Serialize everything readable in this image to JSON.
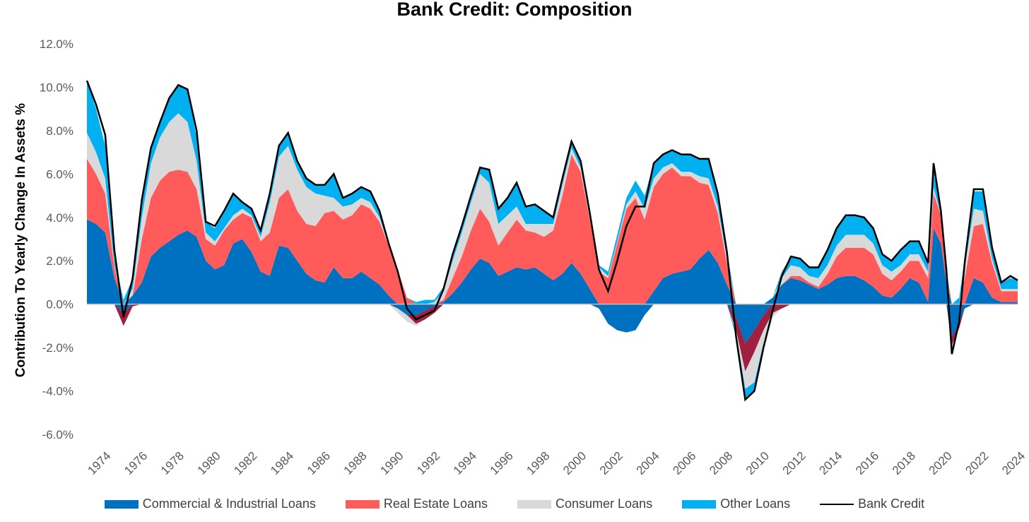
{
  "chart_data": {
    "type": "area",
    "title": "Bank Credit: Composition",
    "xlabel": "",
    "ylabel": "Contribution To Yearly Change In Assets %",
    "ylim": [
      -6,
      12
    ],
    "xlim": [
      1974,
      2024.9
    ],
    "yticks": [
      "12.0%",
      "10.0%",
      "8.0%",
      "6.0%",
      "4.0%",
      "2.0%",
      "0.0%",
      "-2.0%",
      "-4.0%",
      "-6.0%"
    ],
    "xticks": [
      "1974",
      "1976",
      "1978",
      "1980",
      "1982",
      "1984",
      "1986",
      "1988",
      "1990",
      "1992",
      "1994",
      "1996",
      "1998",
      "2000",
      "2002",
      "2004",
      "2006",
      "2008",
      "2010",
      "2012",
      "2014",
      "2016",
      "2018",
      "2020",
      "2022",
      "2024"
    ],
    "legend_position": "bottom",
    "grid": false,
    "colors": {
      "ci": "#0070C0",
      "re": "#FF5B5B",
      "re_negative": "#A0213F",
      "consumer": "#D9D9D9",
      "other": "#00B0F0",
      "bank_credit": "#000000"
    },
    "series": [
      {
        "key": "ci",
        "name": "Commercial & Industrial Loans"
      },
      {
        "key": "re",
        "name": "Real Estate Loans"
      },
      {
        "key": "consumer",
        "name": "Consumer Loans"
      },
      {
        "key": "other",
        "name": "Other Loans"
      },
      {
        "key": "bank_credit",
        "name": "Bank Credit"
      }
    ],
    "points": [
      {
        "x": 1974.0,
        "ci": 3.9,
        "re": 2.8,
        "consumer": 1.2,
        "other": 2.4,
        "total": 10.3
      },
      {
        "x": 1974.5,
        "ci": 3.7,
        "re": 2.3,
        "consumer": 1.0,
        "other": 2.0,
        "total": 9.2
      },
      {
        "x": 1975.0,
        "ci": 3.3,
        "re": 1.8,
        "consumer": 0.7,
        "other": 1.5,
        "total": 7.8
      },
      {
        "x": 1975.5,
        "ci": 1.2,
        "re": 0.5,
        "consumer": 0.1,
        "other": 0.3,
        "total": 2.5
      },
      {
        "x": 1976.0,
        "ci": -0.4,
        "re": -0.6,
        "consumer": 0.0,
        "other": 0.2,
        "total": -0.6
      },
      {
        "x": 1976.5,
        "ci": 0.4,
        "re": -0.1,
        "consumer": 0.3,
        "other": 0.5,
        "total": 1.2
      },
      {
        "x": 1977.0,
        "ci": 1.0,
        "re": 2.0,
        "consumer": 1.0,
        "other": 0.8,
        "total": 4.8
      },
      {
        "x": 1977.5,
        "ci": 2.2,
        "re": 2.7,
        "consumer": 1.6,
        "other": 0.7,
        "total": 7.2
      },
      {
        "x": 1978.0,
        "ci": 2.6,
        "re": 3.1,
        "consumer": 2.0,
        "other": 0.7,
        "total": 8.4
      },
      {
        "x": 1978.5,
        "ci": 2.9,
        "re": 3.2,
        "consumer": 2.3,
        "other": 1.1,
        "total": 9.5
      },
      {
        "x": 1979.0,
        "ci": 3.2,
        "re": 3.0,
        "consumer": 2.6,
        "other": 1.3,
        "total": 10.1
      },
      {
        "x": 1979.5,
        "ci": 3.4,
        "re": 2.7,
        "consumer": 2.3,
        "other": 1.5,
        "total": 9.9
      },
      {
        "x": 1980.0,
        "ci": 3.1,
        "re": 2.2,
        "consumer": 1.3,
        "other": 1.1,
        "total": 8.0
      },
      {
        "x": 1980.5,
        "ci": 2.0,
        "re": 1.0,
        "consumer": 0.3,
        "other": 0.5,
        "total": 3.8
      },
      {
        "x": 1981.0,
        "ci": 1.6,
        "re": 1.1,
        "consumer": 0.2,
        "other": 0.6,
        "total": 3.6
      },
      {
        "x": 1981.5,
        "ci": 1.8,
        "re": 1.6,
        "consumer": 0.1,
        "other": 0.8,
        "total": 4.3
      },
      {
        "x": 1982.0,
        "ci": 2.8,
        "re": 1.1,
        "consumer": 0.2,
        "other": 1.0,
        "total": 5.1
      },
      {
        "x": 1982.5,
        "ci": 3.0,
        "re": 1.2,
        "consumer": 0.2,
        "other": 0.3,
        "total": 4.7
      },
      {
        "x": 1983.0,
        "ci": 2.4,
        "re": 1.6,
        "consumer": 0.1,
        "other": 0.3,
        "total": 4.4
      },
      {
        "x": 1983.5,
        "ci": 1.5,
        "re": 1.4,
        "consumer": 0.2,
        "other": 0.3,
        "total": 3.4
      },
      {
        "x": 1984.0,
        "ci": 1.3,
        "re": 2.0,
        "consumer": 1.4,
        "other": 0.4,
        "total": 5.1
      },
      {
        "x": 1984.5,
        "ci": 2.7,
        "re": 2.2,
        "consumer": 1.9,
        "other": 0.5,
        "total": 7.3
      },
      {
        "x": 1985.0,
        "ci": 2.6,
        "re": 2.7,
        "consumer": 2.0,
        "other": 0.6,
        "total": 7.9
      },
      {
        "x": 1985.5,
        "ci": 2.0,
        "re": 2.3,
        "consumer": 1.9,
        "other": 0.4,
        "total": 6.6
      },
      {
        "x": 1986.0,
        "ci": 1.4,
        "re": 2.3,
        "consumer": 1.7,
        "other": 0.4,
        "total": 5.8
      },
      {
        "x": 1986.5,
        "ci": 1.1,
        "re": 2.5,
        "consumer": 1.5,
        "other": 0.4,
        "total": 5.5
      },
      {
        "x": 1987.0,
        "ci": 1.0,
        "re": 3.2,
        "consumer": 0.8,
        "other": 0.5,
        "total": 5.5
      },
      {
        "x": 1987.5,
        "ci": 1.7,
        "re": 2.6,
        "consumer": 0.6,
        "other": 1.1,
        "total": 6.0
      },
      {
        "x": 1988.0,
        "ci": 1.2,
        "re": 2.7,
        "consumer": 0.6,
        "other": 0.4,
        "total": 4.9
      },
      {
        "x": 1988.5,
        "ci": 1.2,
        "re": 2.9,
        "consumer": 0.5,
        "other": 0.5,
        "total": 5.1
      },
      {
        "x": 1989.0,
        "ci": 1.5,
        "re": 3.1,
        "consumer": 0.3,
        "other": 0.5,
        "total": 5.4
      },
      {
        "x": 1989.5,
        "ci": 1.2,
        "re": 3.2,
        "consumer": 0.3,
        "other": 0.5,
        "total": 5.2
      },
      {
        "x": 1990.0,
        "ci": 0.9,
        "re": 2.9,
        "consumer": 0.2,
        "other": 0.3,
        "total": 4.3
      },
      {
        "x": 1990.5,
        "ci": 0.4,
        "re": 2.3,
        "consumer": 0.0,
        "other": 0.1,
        "total": 2.8
      },
      {
        "x": 1991.0,
        "ci": -0.2,
        "re": 1.6,
        "consumer": -0.2,
        "other": 0.0,
        "total": 1.5
      },
      {
        "x": 1991.5,
        "ci": -0.5,
        "re": 0.3,
        "consumer": -0.3,
        "other": 0.0,
        "total": -0.2
      },
      {
        "x": 1992.0,
        "ci": -0.5,
        "re": -0.4,
        "consumer": -0.1,
        "other": 0.1,
        "total": -0.7
      },
      {
        "x": 1992.5,
        "ci": -0.3,
        "re": -0.4,
        "consumer": 0.0,
        "other": 0.2,
        "total": -0.5
      },
      {
        "x": 1993.0,
        "ci": -0.1,
        "re": -0.3,
        "consumer": 0.1,
        "other": 0.1,
        "total": -0.3
      },
      {
        "x": 1993.5,
        "ci": 0.1,
        "re": 0.1,
        "consumer": 0.4,
        "other": 0.2,
        "total": 0.7
      },
      {
        "x": 1994.0,
        "ci": 0.5,
        "re": 0.7,
        "consumer": 0.8,
        "other": 0.3,
        "total": 2.3
      },
      {
        "x": 1994.5,
        "ci": 1.0,
        "re": 1.2,
        "consumer": 1.1,
        "other": 0.3,
        "total": 3.6
      },
      {
        "x": 1995.0,
        "ci": 1.6,
        "re": 1.8,
        "consumer": 1.3,
        "other": 0.3,
        "total": 5.0
      },
      {
        "x": 1995.5,
        "ci": 2.1,
        "re": 2.3,
        "consumer": 1.6,
        "other": 0.3,
        "total": 6.3
      },
      {
        "x": 1996.0,
        "ci": 1.9,
        "re": 1.9,
        "consumer": 1.8,
        "other": 0.6,
        "total": 6.2
      },
      {
        "x": 1996.5,
        "ci": 1.3,
        "re": 1.4,
        "consumer": 1.0,
        "other": 0.7,
        "total": 4.4
      },
      {
        "x": 1997.0,
        "ci": 1.5,
        "re": 1.8,
        "consumer": 0.8,
        "other": 0.8,
        "total": 4.9
      },
      {
        "x": 1997.5,
        "ci": 1.7,
        "re": 2.2,
        "consumer": 0.6,
        "other": 1.1,
        "total": 5.6
      },
      {
        "x": 1998.0,
        "ci": 1.6,
        "re": 1.8,
        "consumer": 0.3,
        "other": 0.8,
        "total": 4.5
      },
      {
        "x": 1998.5,
        "ci": 1.7,
        "re": 1.6,
        "consumer": 0.4,
        "other": 0.9,
        "total": 4.6
      },
      {
        "x": 1999.0,
        "ci": 1.4,
        "re": 1.7,
        "consumer": 0.6,
        "other": 0.6,
        "total": 4.3
      },
      {
        "x": 1999.5,
        "ci": 1.1,
        "re": 2.3,
        "consumer": 0.3,
        "other": 0.3,
        "total": 4.0
      },
      {
        "x": 2000.0,
        "ci": 1.4,
        "re": 3.6,
        "consumer": 0.5,
        "other": 0.3,
        "total": 5.8
      },
      {
        "x": 2000.5,
        "ci": 1.9,
        "re": 5.0,
        "consumer": 0.3,
        "other": 0.3,
        "total": 7.5
      },
      {
        "x": 2001.0,
        "ci": 1.4,
        "re": 4.7,
        "consumer": 0.2,
        "other": 0.3,
        "total": 6.6
      },
      {
        "x": 2001.5,
        "ci": 0.7,
        "re": 3.2,
        "consumer": 0.1,
        "other": 0.2,
        "total": 4.2
      },
      {
        "x": 2002.0,
        "ci": -0.2,
        "re": 1.5,
        "consumer": 0.2,
        "other": 0.1,
        "total": 1.6
      },
      {
        "x": 2002.5,
        "ci": -0.9,
        "re": 1.2,
        "consumer": 0.1,
        "other": 0.2,
        "total": 0.6
      },
      {
        "x": 2003.0,
        "ci": -1.2,
        "re": 2.8,
        "consumer": 0.1,
        "other": 0.3,
        "total": 2.0
      },
      {
        "x": 2003.5,
        "ci": -1.3,
        "re": 4.4,
        "consumer": 0.2,
        "other": 0.3,
        "total": 3.6
      },
      {
        "x": 2004.0,
        "ci": -1.2,
        "re": 4.9,
        "consumer": 0.3,
        "other": 0.5,
        "total": 4.5
      },
      {
        "x": 2004.5,
        "ci": -0.5,
        "re": 3.9,
        "consumer": 0.5,
        "other": 0.6,
        "total": 4.5
      },
      {
        "x": 2005.0,
        "ci": 0.6,
        "re": 4.8,
        "consumer": 0.4,
        "other": 0.7,
        "total": 6.5
      },
      {
        "x": 2005.5,
        "ci": 1.2,
        "re": 4.8,
        "consumer": 0.3,
        "other": 0.6,
        "total": 6.9
      },
      {
        "x": 2006.0,
        "ci": 1.4,
        "re": 4.9,
        "consumer": 0.2,
        "other": 0.6,
        "total": 7.1
      },
      {
        "x": 2006.5,
        "ci": 1.5,
        "re": 4.4,
        "consumer": 0.2,
        "other": 0.8,
        "total": 6.9
      },
      {
        "x": 2007.0,
        "ci": 1.6,
        "re": 4.3,
        "consumer": 0.2,
        "other": 0.8,
        "total": 6.9
      },
      {
        "x": 2007.5,
        "ci": 2.1,
        "re": 3.5,
        "consumer": 0.3,
        "other": 0.8,
        "total": 6.7
      },
      {
        "x": 2008.0,
        "ci": 2.5,
        "re": 3.0,
        "consumer": 0.3,
        "other": 0.9,
        "total": 6.7
      },
      {
        "x": 2008.5,
        "ci": 1.9,
        "re": 2.3,
        "consumer": 0.3,
        "other": 0.6,
        "total": 5.1
      },
      {
        "x": 2009.0,
        "ci": 0.9,
        "re": 1.0,
        "consumer": 0.2,
        "other": 0.3,
        "total": 2.4
      },
      {
        "x": 2009.5,
        "ci": -0.6,
        "re": -0.6,
        "consumer": -0.1,
        "other": -0.2,
        "total": -1.5
      },
      {
        "x": 2010.0,
        "ci": -1.8,
        "re": -1.3,
        "consumer": -0.8,
        "other": -0.5,
        "total": -4.4
      },
      {
        "x": 2010.5,
        "ci": -1.2,
        "re": -1.0,
        "consumer": -1.4,
        "other": -0.4,
        "total": -4.0
      },
      {
        "x": 2011.0,
        "ci": -0.5,
        "re": -0.7,
        "consumer": -0.6,
        "other": -0.2,
        "total": -2.0
      },
      {
        "x": 2011.5,
        "ci": 0.3,
        "re": -0.4,
        "consumer": -0.2,
        "other": 0.0,
        "total": -0.3
      },
      {
        "x": 2012.0,
        "ci": 0.9,
        "re": -0.2,
        "consumer": 0.3,
        "other": 0.3,
        "total": 1.3
      },
      {
        "x": 2012.5,
        "ci": 1.2,
        "re": 0.1,
        "consumer": 0.5,
        "other": 0.4,
        "total": 2.2
      },
      {
        "x": 2013.0,
        "ci": 1.1,
        "re": 0.2,
        "consumer": 0.4,
        "other": 0.4,
        "total": 2.1
      },
      {
        "x": 2013.5,
        "ci": 0.9,
        "re": 0.1,
        "consumer": 0.3,
        "other": 0.4,
        "total": 1.7
      },
      {
        "x": 2014.0,
        "ci": 0.7,
        "re": 0.1,
        "consumer": 0.4,
        "other": 0.5,
        "total": 1.7
      },
      {
        "x": 2014.5,
        "ci": 0.9,
        "re": 0.5,
        "consumer": 0.4,
        "other": 0.7,
        "total": 2.5
      },
      {
        "x": 2015.0,
        "ci": 1.2,
        "re": 1.0,
        "consumer": 0.5,
        "other": 0.8,
        "total": 3.5
      },
      {
        "x": 2015.5,
        "ci": 1.3,
        "re": 1.3,
        "consumer": 0.6,
        "other": 0.9,
        "total": 4.1
      },
      {
        "x": 2016.0,
        "ci": 1.3,
        "re": 1.3,
        "consumer": 0.6,
        "other": 0.9,
        "total": 4.1
      },
      {
        "x": 2016.5,
        "ci": 1.1,
        "re": 1.5,
        "consumer": 0.6,
        "other": 0.8,
        "total": 4.0
      },
      {
        "x": 2017.0,
        "ci": 0.8,
        "re": 1.5,
        "consumer": 0.5,
        "other": 0.7,
        "total": 3.5
      },
      {
        "x": 2017.5,
        "ci": 0.4,
        "re": 1.0,
        "consumer": 0.4,
        "other": 0.5,
        "total": 2.3
      },
      {
        "x": 2018.0,
        "ci": 0.3,
        "re": 0.8,
        "consumer": 0.4,
        "other": 0.5,
        "total": 2.0
      },
      {
        "x": 2018.5,
        "ci": 0.7,
        "re": 0.8,
        "consumer": 0.3,
        "other": 0.7,
        "total": 2.5
      },
      {
        "x": 2019.0,
        "ci": 1.2,
        "re": 0.8,
        "consumer": 0.3,
        "other": 0.6,
        "total": 2.9
      },
      {
        "x": 2019.5,
        "ci": 1.0,
        "re": 1.0,
        "consumer": 0.3,
        "other": 0.6,
        "total": 2.9
      },
      {
        "x": 2020.0,
        "ci": 0.1,
        "re": 1.1,
        "consumer": 0.3,
        "other": 0.4,
        "total": 1.9
      },
      {
        "x": 2020.3,
        "ci": 3.5,
        "re": 1.6,
        "consumer": 0.3,
        "other": 1.0,
        "total": 6.5
      },
      {
        "x": 2020.7,
        "ci": 2.8,
        "re": 1.3,
        "consumer": 0.0,
        "other": 0.2,
        "total": 4.3
      },
      {
        "x": 2021.0,
        "ci": 1.0,
        "re": 0.4,
        "consumer": 0.0,
        "other": 0.2,
        "total": 1.6
      },
      {
        "x": 2021.3,
        "ci": -1.5,
        "re": -0.4,
        "consumer": -0.2,
        "other": 0.0,
        "total": -2.3
      },
      {
        "x": 2021.7,
        "ci": -0.9,
        "re": -0.2,
        "consumer": 0.0,
        "other": 0.3,
        "total": -0.8
      },
      {
        "x": 2022.0,
        "ci": -0.2,
        "re": 1.2,
        "consumer": 0.5,
        "other": 0.4,
        "total": 1.9
      },
      {
        "x": 2022.5,
        "ci": 1.2,
        "re": 2.4,
        "consumer": 0.8,
        "other": 0.8,
        "total": 5.3
      },
      {
        "x": 2023.0,
        "ci": 1.0,
        "re": 2.7,
        "consumer": 0.6,
        "other": 0.9,
        "total": 5.3
      },
      {
        "x": 2023.5,
        "ci": 0.3,
        "re": 1.6,
        "consumer": 0.2,
        "other": 0.6,
        "total": 2.6
      },
      {
        "x": 2024.0,
        "ci": 0.1,
        "re": 0.5,
        "consumer": 0.1,
        "other": 0.3,
        "total": 1.0
      },
      {
        "x": 2024.5,
        "ci": 0.1,
        "re": 0.5,
        "consumer": 0.1,
        "other": 0.5,
        "total": 1.3
      },
      {
        "x": 2024.9,
        "ci": 0.1,
        "re": 0.5,
        "consumer": 0.1,
        "other": 0.4,
        "total": 1.1
      }
    ]
  }
}
